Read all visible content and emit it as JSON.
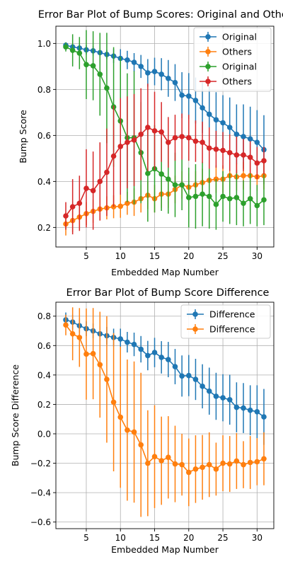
{
  "chart_data": [
    {
      "type": "line",
      "title": "Error Bar Plot of Bump Scores: Original and Others",
      "xlabel": "Embedded Map Number",
      "ylabel": "Bump Score",
      "xlim": [
        0.55,
        32.45
      ],
      "ylim": [
        0.115,
        1.075
      ],
      "grid": true,
      "legend_placement": "top-right",
      "xticks": [
        5,
        10,
        15,
        20,
        25,
        30
      ],
      "xtick_labels": [
        "5",
        "10",
        "15",
        "20",
        "25",
        "30"
      ],
      "yticks": [
        0.2,
        0.4,
        0.6,
        0.8,
        1.0
      ],
      "ytick_labels": [
        "0.2",
        "0.4",
        "0.6",
        "0.8",
        "1.0"
      ],
      "x": [
        2,
        3,
        4,
        5,
        6,
        7,
        8,
        9,
        10,
        11,
        12,
        13,
        14,
        15,
        16,
        17,
        18,
        19,
        20,
        21,
        22,
        23,
        24,
        25,
        26,
        27,
        28,
        29,
        30,
        31
      ],
      "series": [
        {
          "name": "Original",
          "color": "#1f77b4",
          "values": [
            0.992,
            0.985,
            0.98,
            0.972,
            0.968,
            0.96,
            0.952,
            0.945,
            0.935,
            0.928,
            0.918,
            0.9,
            0.872,
            0.878,
            0.866,
            0.848,
            0.83,
            0.775,
            0.771,
            0.752,
            0.72,
            0.692,
            0.668,
            0.655,
            0.635,
            0.605,
            0.595,
            0.585,
            0.57,
            0.538
          ],
          "errors": [
            0.01,
            0.01,
            0.02,
            0.02,
            0.02,
            0.02,
            0.02,
            0.03,
            0.04,
            0.04,
            0.04,
            0.05,
            0.06,
            0.06,
            0.07,
            0.08,
            0.08,
            0.1,
            0.1,
            0.1,
            0.11,
            0.12,
            0.12,
            0.12,
            0.13,
            0.13,
            0.14,
            0.14,
            0.14,
            0.15
          ]
        },
        {
          "name": "Others",
          "color": "#ff7f0e",
          "values": [
            0.215,
            0.23,
            0.245,
            0.26,
            0.27,
            0.28,
            0.285,
            0.29,
            0.292,
            0.305,
            0.31,
            0.325,
            0.34,
            0.325,
            0.345,
            0.345,
            0.365,
            0.385,
            0.375,
            0.385,
            0.395,
            0.405,
            0.41,
            0.41,
            0.425,
            0.42,
            0.425,
            0.425,
            0.42,
            0.425
          ],
          "errors": [
            0.05,
            0.05,
            0.05,
            0.05,
            0.05,
            0.05,
            0.05,
            0.05,
            0.05,
            0.05,
            0.06,
            0.06,
            0.06,
            0.06,
            0.06,
            0.06,
            0.06,
            0.06,
            0.06,
            0.06,
            0.06,
            0.06,
            0.06,
            0.06,
            0.06,
            0.06,
            0.06,
            0.06,
            0.06,
            0.06
          ]
        },
        {
          "name": "Original",
          "color": "#2ca02c",
          "values": [
            0.985,
            0.97,
            0.958,
            0.908,
            0.903,
            0.866,
            0.806,
            0.724,
            0.663,
            0.59,
            0.59,
            0.525,
            0.435,
            0.455,
            0.432,
            0.41,
            0.385,
            0.385,
            0.33,
            0.335,
            0.345,
            0.335,
            0.3,
            0.335,
            0.325,
            0.33,
            0.305,
            0.325,
            0.295,
            0.32
          ],
          "errors": [
            0.02,
            0.07,
            0.07,
            0.15,
            0.15,
            0.18,
            0.24,
            0.26,
            0.28,
            0.28,
            0.29,
            0.22,
            0.21,
            0.19,
            0.16,
            0.15,
            0.14,
            0.11,
            0.13,
            0.14,
            0.14,
            0.14,
            0.11,
            0.11,
            0.11,
            0.12,
            0.1,
            0.11,
            0.09,
            0.11
          ]
        },
        {
          "name": "Others",
          "color": "#d62728",
          "values": [
            0.25,
            0.29,
            0.305,
            0.37,
            0.36,
            0.4,
            0.44,
            0.51,
            0.552,
            0.57,
            0.58,
            0.605,
            0.635,
            0.62,
            0.615,
            0.57,
            0.59,
            0.595,
            0.59,
            0.575,
            0.57,
            0.545,
            0.54,
            0.535,
            0.525,
            0.515,
            0.515,
            0.505,
            0.48,
            0.49
          ],
          "errors": [
            0.06,
            0.12,
            0.12,
            0.17,
            0.17,
            0.17,
            0.19,
            0.22,
            0.21,
            0.2,
            0.2,
            0.2,
            0.19,
            0.17,
            0.13,
            0.11,
            0.1,
            0.1,
            0.1,
            0.09,
            0.09,
            0.09,
            0.08,
            0.08,
            0.08,
            0.08,
            0.07,
            0.07,
            0.07,
            0.06
          ]
        }
      ]
    },
    {
      "type": "line",
      "title": "Error Bar Plot of Bump Score Difference",
      "xlabel": "Embedded Map Number",
      "ylabel": "Bump Score Difference",
      "xlim": [
        0.55,
        32.45
      ],
      "ylim": [
        -0.645,
        0.895
      ],
      "grid": true,
      "legend_placement": "top-right",
      "xticks": [
        5,
        10,
        15,
        20,
        25,
        30
      ],
      "xtick_labels": [
        "5",
        "10",
        "15",
        "20",
        "25",
        "30"
      ],
      "yticks": [
        -0.6,
        -0.4,
        -0.2,
        0.0,
        0.2,
        0.4,
        0.6,
        0.8
      ],
      "ytick_labels": [
        "−0.6",
        "−0.4",
        "−0.2",
        "0.0",
        "0.2",
        "0.4",
        "0.6",
        "0.8"
      ],
      "x": [
        2,
        3,
        4,
        5,
        6,
        7,
        8,
        9,
        10,
        11,
        12,
        13,
        14,
        15,
        16,
        17,
        18,
        19,
        20,
        21,
        22,
        23,
        24,
        25,
        26,
        27,
        28,
        29,
        30,
        31
      ],
      "series": [
        {
          "name": "Difference",
          "color": "#1f77b4",
          "values": [
            0.775,
            0.76,
            0.735,
            0.715,
            0.7,
            0.68,
            0.667,
            0.655,
            0.645,
            0.623,
            0.608,
            0.575,
            0.532,
            0.553,
            0.52,
            0.505,
            0.457,
            0.393,
            0.396,
            0.37,
            0.323,
            0.29,
            0.255,
            0.245,
            0.232,
            0.18,
            0.175,
            0.16,
            0.15,
            0.115
          ],
          "errors": [
            0.05,
            0.05,
            0.05,
            0.05,
            0.05,
            0.05,
            0.06,
            0.06,
            0.07,
            0.07,
            0.08,
            0.09,
            0.1,
            0.1,
            0.11,
            0.12,
            0.12,
            0.14,
            0.14,
            0.14,
            0.15,
            0.16,
            0.16,
            0.16,
            0.17,
            0.17,
            0.17,
            0.17,
            0.18,
            0.19
          ]
        },
        {
          "name": "Difference",
          "color": "#ff7f0e",
          "values": [
            0.74,
            0.68,
            0.655,
            0.542,
            0.545,
            0.47,
            0.37,
            0.215,
            0.113,
            0.025,
            0.012,
            -0.075,
            -0.2,
            -0.155,
            -0.183,
            -0.16,
            -0.205,
            -0.21,
            -0.262,
            -0.24,
            -0.228,
            -0.21,
            -0.24,
            -0.2,
            -0.205,
            -0.185,
            -0.21,
            -0.195,
            -0.19,
            -0.17
          ],
          "errors": [
            0.07,
            0.18,
            0.2,
            0.31,
            0.31,
            0.36,
            0.43,
            0.47,
            0.48,
            0.48,
            0.48,
            0.49,
            0.36,
            0.35,
            0.3,
            0.28,
            0.26,
            0.21,
            0.23,
            0.23,
            0.22,
            0.22,
            0.18,
            0.19,
            0.19,
            0.19,
            0.16,
            0.18,
            0.16,
            0.18
          ]
        }
      ]
    }
  ]
}
